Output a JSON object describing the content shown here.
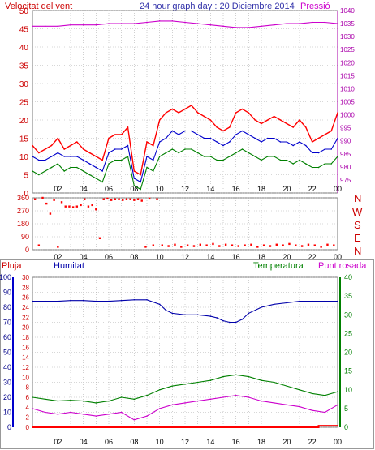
{
  "header": {
    "wind_title": "Velocitat del vent",
    "graph_title": "24 hour graph day : 20 Diciembre 2014",
    "pressure_title": "Pressió"
  },
  "lower_titles": {
    "rain": "Pluja",
    "humidity": "Humitat",
    "temperature": "Temperatura",
    "dewpoint": "Punt rosada"
  },
  "direction_letters": [
    "N",
    "W",
    "S",
    "E",
    "N"
  ],
  "colors": {
    "wind_gust": "#ff0000",
    "wind_avg": "#0000cc",
    "wind_speed": "#008000",
    "pressure": "#cc00cc",
    "direction": "#ff0000",
    "humidity": "#0000aa",
    "temperature": "#008000",
    "dewpoint": "#cc00cc",
    "rain": "#ff0000",
    "axis_left": "#cc0000",
    "axis_right": "#aa00aa",
    "grid": "#b0b0b0"
  },
  "chart_data": [
    {
      "type": "line",
      "title": "24 hour graph day : 20 Diciembre 2014",
      "x_ticks": [
        "02",
        "04",
        "06",
        "08",
        "10",
        "12",
        "14",
        "16",
        "18",
        "20",
        "22",
        "00"
      ],
      "x_hours": [
        2,
        4,
        6,
        8,
        10,
        12,
        14,
        16,
        18,
        20,
        22,
        24
      ],
      "x_range": [
        0,
        24
      ],
      "y_left_label": "Velocitat del vent",
      "y_left_range": [
        0,
        50
      ],
      "y_left_ticks": [
        0,
        5,
        10,
        15,
        20,
        25,
        30,
        35,
        40,
        45,
        50
      ],
      "y_right_label": "Pressió",
      "y_right_range": [
        970,
        1040
      ],
      "y_right_ticks": [
        975,
        980,
        985,
        990,
        995,
        1000,
        1005,
        1010,
        1015,
        1020,
        1025,
        1030,
        1035,
        1040
      ],
      "grid": true,
      "series": [
        {
          "key": "gust",
          "axis": "left",
          "x": [
            0,
            0.5,
            1,
            1.5,
            2,
            2.5,
            3,
            3.5,
            4,
            4.5,
            5,
            5.5,
            6,
            6.5,
            7,
            7.5,
            8,
            8.5,
            9,
            9.5,
            10,
            10.5,
            11,
            11.5,
            12,
            12.5,
            13,
            13.5,
            14,
            14.5,
            15,
            15.5,
            16,
            16.5,
            17,
            17.5,
            18,
            18.5,
            19,
            19.5,
            20,
            20.5,
            21,
            21.5,
            22,
            22.5,
            23,
            23.5,
            24
          ],
          "y": [
            13,
            11,
            12,
            13,
            15,
            12,
            13,
            14,
            12,
            11,
            10,
            9,
            15,
            16,
            16,
            18,
            6,
            5,
            14,
            13,
            20,
            22,
            23,
            22,
            23,
            24,
            22,
            21,
            20,
            18,
            17,
            18,
            22,
            23,
            22,
            20,
            19,
            20,
            21,
            20,
            19,
            18,
            20,
            18,
            14,
            15,
            16,
            17,
            22
          ]
        },
        {
          "key": "average",
          "axis": "left",
          "x": [
            0,
            0.5,
            1,
            1.5,
            2,
            2.5,
            3,
            3.5,
            4,
            4.5,
            5,
            5.5,
            6,
            6.5,
            7,
            7.5,
            8,
            8.5,
            9,
            9.5,
            10,
            10.5,
            11,
            11.5,
            12,
            12.5,
            13,
            13.5,
            14,
            14.5,
            15,
            15.5,
            16,
            16.5,
            17,
            17.5,
            18,
            18.5,
            19,
            19.5,
            20,
            20.5,
            21,
            21.5,
            22,
            22.5,
            23,
            23.5,
            24
          ],
          "y": [
            10,
            9,
            9,
            10,
            11,
            10,
            10,
            10,
            9,
            8,
            7,
            6,
            11,
            12,
            12,
            13,
            4,
            3,
            10,
            9,
            14,
            15,
            17,
            16,
            17,
            17,
            16,
            15,
            15,
            14,
            13,
            14,
            16,
            17,
            16,
            15,
            14,
            15,
            15,
            14,
            14,
            13,
            14,
            13,
            11,
            11,
            12,
            12,
            15
          ]
        },
        {
          "key": "speed",
          "axis": "left",
          "x": [
            0,
            0.5,
            1,
            1.5,
            2,
            2.5,
            3,
            3.5,
            4,
            4.5,
            5,
            5.5,
            6,
            6.5,
            7,
            7.5,
            8,
            8.5,
            9,
            9.5,
            10,
            10.5,
            11,
            11.5,
            12,
            12.5,
            13,
            13.5,
            14,
            14.5,
            15,
            15.5,
            16,
            16.5,
            17,
            17.5,
            18,
            18.5,
            19,
            19.5,
            20,
            20.5,
            21,
            21.5,
            22,
            22.5,
            23,
            23.5,
            24
          ],
          "y": [
            6,
            5,
            6,
            7,
            8,
            6,
            7,
            7,
            6,
            5,
            4,
            3,
            8,
            9,
            9,
            10,
            2,
            1,
            7,
            6,
            10,
            11,
            12,
            11,
            12,
            12,
            11,
            10,
            10,
            9,
            9,
            10,
            11,
            12,
            11,
            10,
            9,
            10,
            10,
            9,
            9,
            8,
            9,
            8,
            7,
            7,
            8,
            8,
            10
          ]
        },
        {
          "key": "pressure",
          "axis": "right",
          "x": [
            0,
            1,
            2,
            3,
            4,
            5,
            6,
            7,
            8,
            9,
            10,
            11,
            12,
            13,
            14,
            15,
            16,
            17,
            18,
            19,
            20,
            21,
            22,
            23,
            24
          ],
          "y": [
            1034,
            1034,
            1034,
            1034.5,
            1034.5,
            1034.5,
            1035,
            1035,
            1035,
            1035.5,
            1036,
            1036,
            1035.5,
            1035,
            1034.5,
            1034,
            1033.5,
            1033.5,
            1034,
            1034.5,
            1035,
            1035,
            1035.5,
            1035.5,
            1035
          ]
        }
      ]
    },
    {
      "type": "scatter",
      "x_range": [
        0,
        24
      ],
      "y_range": [
        0,
        360
      ],
      "y_ticks": [
        0,
        90,
        180,
        270,
        360
      ],
      "grid": true,
      "series": [
        {
          "key": "direction",
          "x": [
            0.2,
            0.5,
            0.8,
            1.1,
            1.4,
            1.7,
            2.0,
            2.3,
            2.6,
            2.9,
            3.2,
            3.5,
            3.8,
            4.1,
            4.4,
            4.7,
            5.0,
            5.3,
            5.6,
            5.9,
            6.2,
            6.5,
            6.8,
            7.1,
            7.4,
            7.7,
            8.0,
            8.3,
            8.6,
            8.9,
            9.2,
            9.5,
            9.8,
            10.2,
            10.7,
            11.2,
            11.7,
            12.2,
            12.7,
            13.2,
            13.7,
            14.2,
            14.7,
            15.2,
            15.7,
            16.2,
            16.7,
            17.2,
            17.7,
            18.2,
            18.7,
            19.2,
            19.7,
            20.2,
            20.7,
            21.2,
            21.7,
            22.2,
            22.7,
            23.2,
            23.7
          ],
          "y": [
            350,
            30,
            360,
            320,
            250,
            345,
            20,
            330,
            300,
            300,
            295,
            300,
            310,
            350,
            300,
            310,
            280,
            80,
            350,
            355,
            345,
            350,
            350,
            345,
            350,
            350,
            345,
            350,
            340,
            20,
            355,
            30,
            350,
            30,
            25,
            35,
            20,
            30,
            25,
            35,
            30,
            40,
            25,
            35,
            30,
            25,
            30,
            35,
            20,
            30,
            25,
            35,
            30,
            40,
            30,
            25,
            35,
            30,
            20,
            35,
            30
          ]
        }
      ]
    },
    {
      "type": "line",
      "x_range": [
        0,
        24
      ],
      "titles": [
        "Pluja",
        "Humitat",
        "Temperatura",
        "Punt rosada"
      ],
      "y_rain_range": [
        0,
        30
      ],
      "y_rain_ticks": [
        0,
        2,
        4,
        6,
        8,
        10,
        12,
        14,
        16,
        18,
        20,
        22,
        24,
        26,
        28,
        30
      ],
      "y_humidity_range": [
        0,
        100
      ],
      "y_humidity_ticks": [
        0,
        10,
        20,
        30,
        40,
        50,
        60,
        70,
        80,
        90,
        100
      ],
      "y_temp_range": [
        0,
        40
      ],
      "y_temp_ticks": [
        0,
        5,
        10,
        15,
        20,
        25,
        30,
        35,
        40
      ],
      "grid": true,
      "series": [
        {
          "key": "humidity",
          "axis": "humidity",
          "x": [
            0,
            1,
            2,
            3,
            4,
            5,
            6,
            7,
            8,
            9,
            10,
            10.5,
            11,
            12,
            13,
            14,
            14.5,
            15,
            15.5,
            16,
            16.5,
            17,
            18,
            19,
            20,
            21,
            22,
            23,
            24
          ],
          "y": [
            84,
            84,
            84,
            84.5,
            84.5,
            84,
            84,
            84.5,
            85,
            85,
            82,
            78,
            76,
            75,
            75,
            74,
            73,
            71,
            70,
            70,
            72,
            76,
            80,
            82,
            83,
            84,
            84,
            84,
            84
          ]
        },
        {
          "key": "temperature",
          "axis": "temp",
          "x": [
            0,
            1,
            2,
            3,
            4,
            5,
            6,
            7,
            8,
            9,
            10,
            11,
            12,
            13,
            14,
            15,
            16,
            17,
            18,
            19,
            20,
            21,
            22,
            23,
            24
          ],
          "y": [
            8,
            7.5,
            7,
            7.2,
            7,
            6.5,
            7,
            8,
            7.5,
            8.5,
            10,
            11,
            11.5,
            12,
            12.5,
            13.5,
            14,
            13.5,
            12.5,
            12,
            11,
            10,
            9,
            8.5,
            9.5
          ]
        },
        {
          "key": "dewpoint",
          "axis": "temp",
          "x": [
            0,
            1,
            2,
            3,
            4,
            5,
            6,
            7,
            8,
            9,
            10,
            11,
            12,
            13,
            14,
            15,
            16,
            17,
            18,
            19,
            20,
            21,
            22,
            23,
            24
          ],
          "y": [
            5,
            4,
            3.5,
            4,
            3.5,
            3,
            3.5,
            4,
            2,
            3,
            5,
            6,
            6.5,
            7,
            7.5,
            8,
            8.5,
            8,
            7,
            6.5,
            6,
            5.5,
            4.5,
            4,
            6
          ]
        },
        {
          "key": "rain",
          "axis": "rain",
          "x": [
            0,
            22.5,
            22.5,
            24
          ],
          "y": [
            0,
            0,
            0.3,
            0.3
          ]
        }
      ]
    }
  ]
}
